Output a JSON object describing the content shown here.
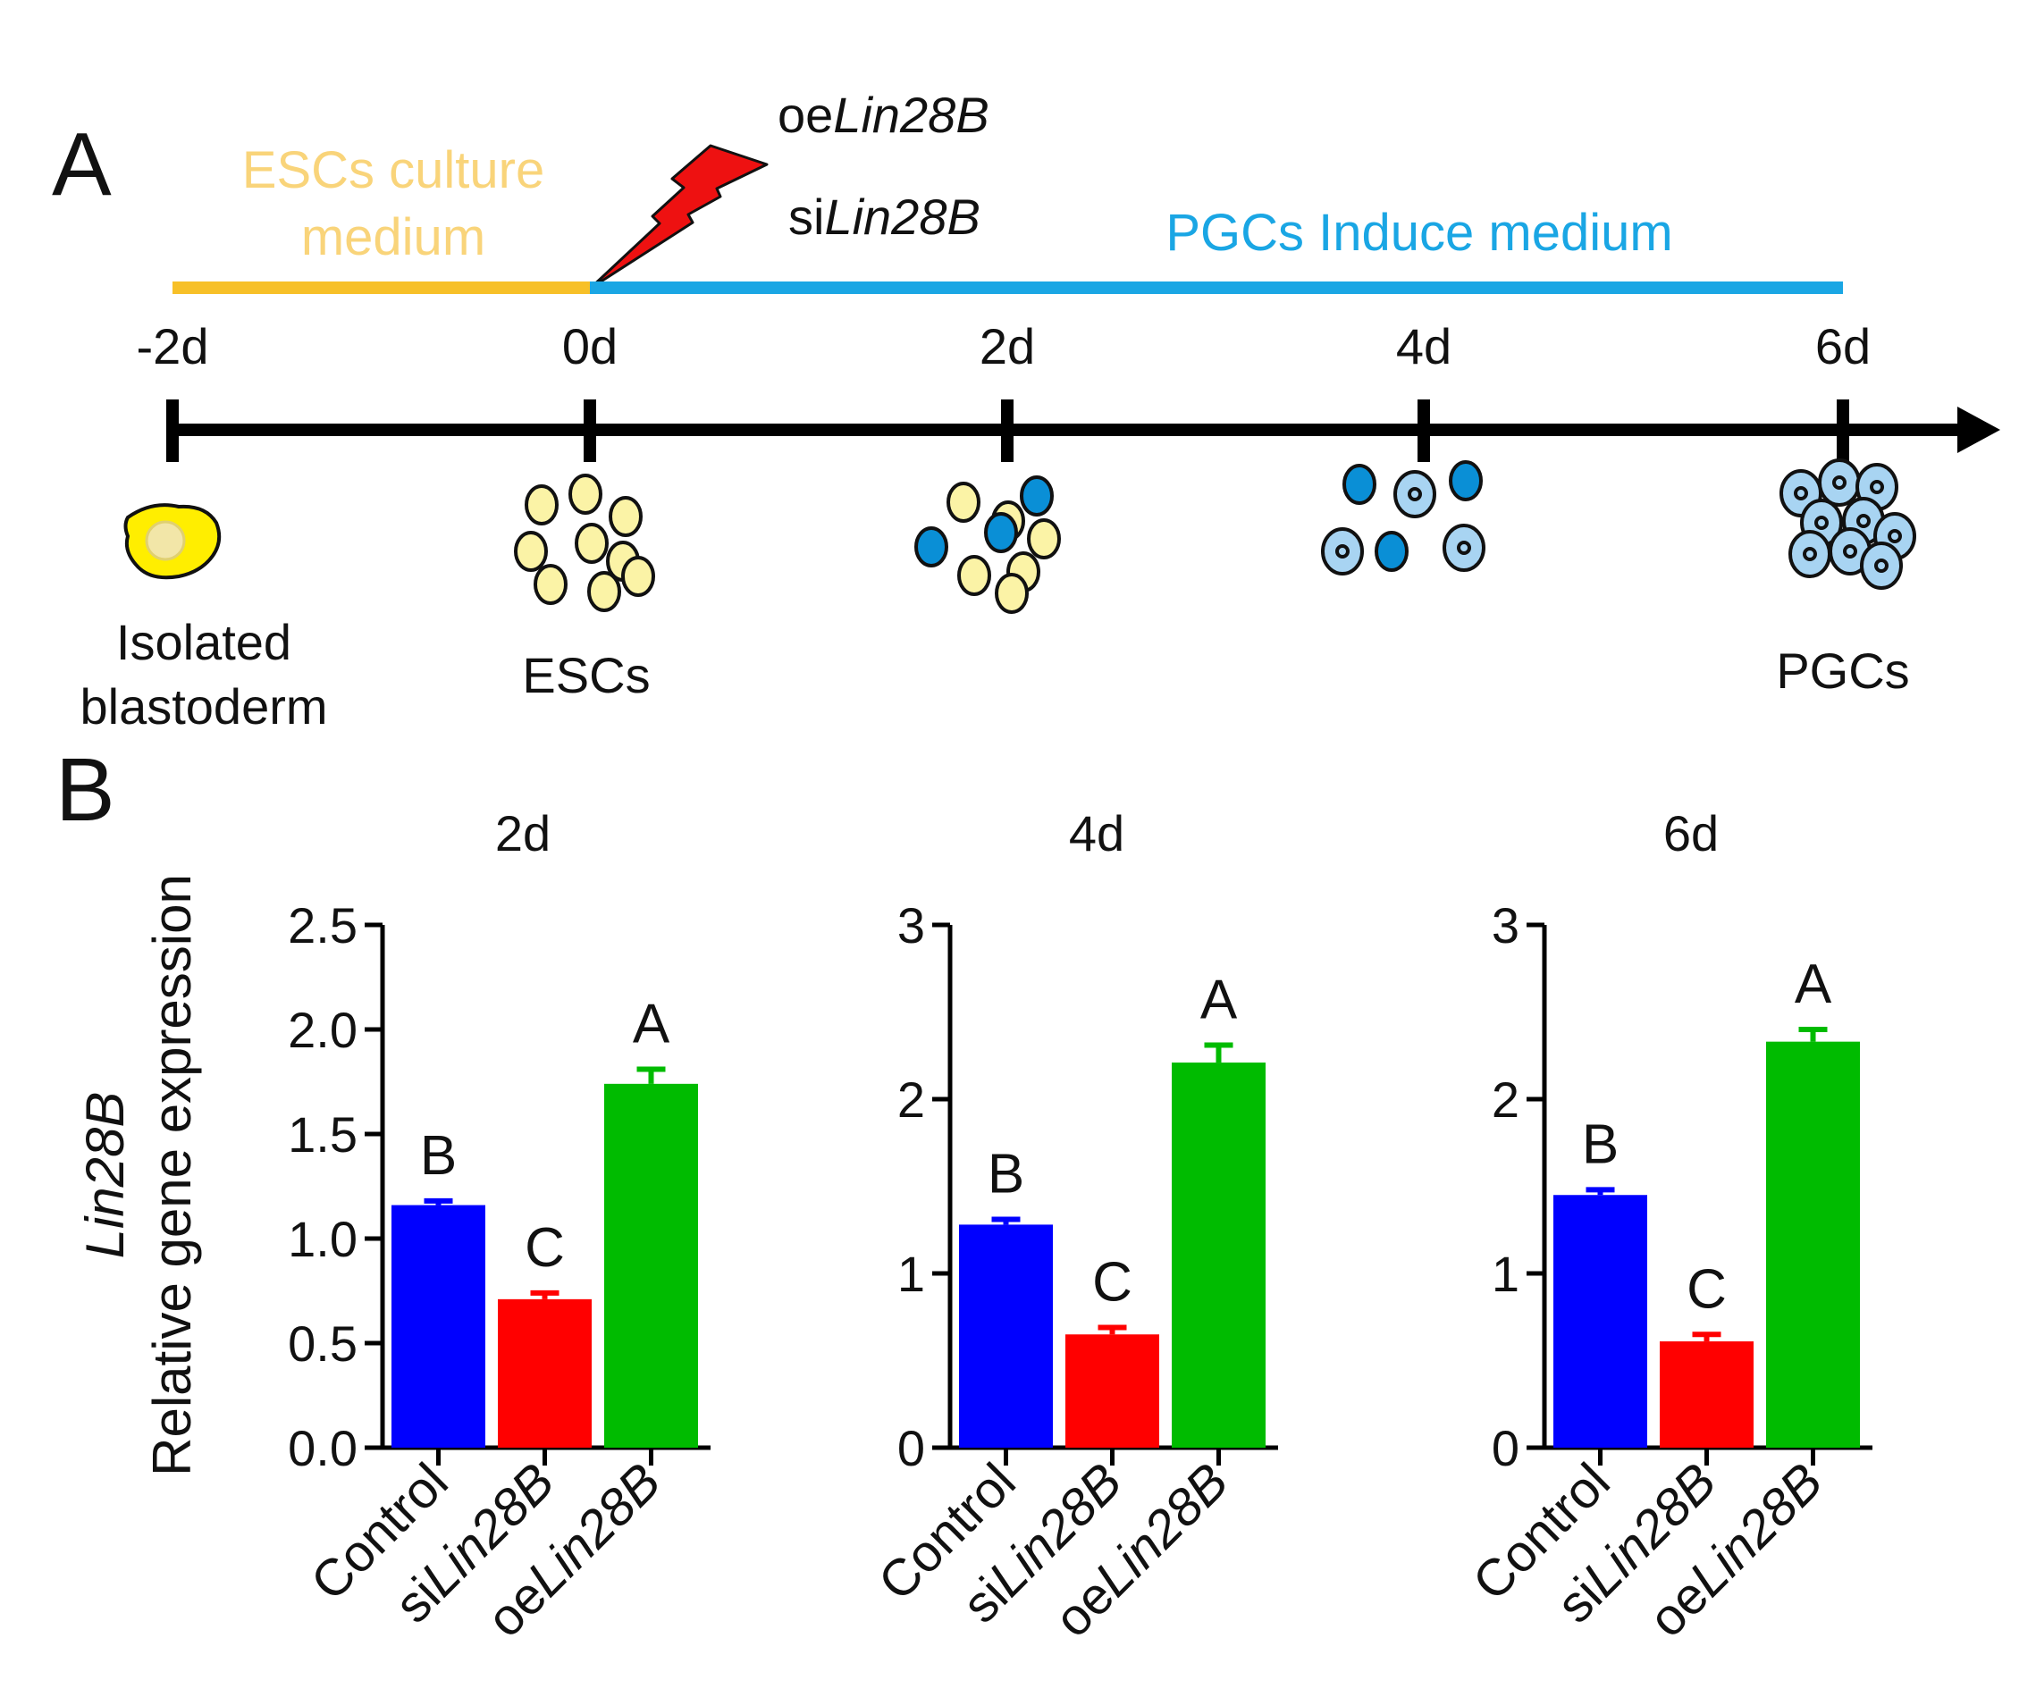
{
  "panel_a": {
    "label": "A",
    "esc_medium_line1": "ESCs culture",
    "esc_medium_line2": "medium",
    "pgc_medium": "PGCs Induce medium",
    "treatment_oe_prefix": "oe",
    "treatment_si_prefix": "si",
    "gene": "Lin28B",
    "days": [
      "-2d",
      "0d",
      "2d",
      "4d",
      "6d"
    ],
    "stage_isolated_line1": "Isolated",
    "stage_isolated_line2": "blastoderm",
    "stage_escs": "ESCs",
    "stage_pgcs": "PGCs",
    "colors": {
      "esc": "#f7c028",
      "esc_text": "#f9d47a",
      "pgc": "#1aa6e4",
      "bolt": "#ee1111",
      "cell_yellow": "#fbf3a6",
      "cell_blue": "#0a8fd6",
      "cell_light": "#a8d4f2",
      "blastoderm": "#ffee00"
    }
  },
  "panel_b": {
    "label": "B",
    "ylabel_gene": "Lin28B",
    "ylabel_text": "Relative gene expression",
    "category_labels": [
      {
        "prefix": "",
        "gene": "Control",
        "gene_italic": false
      },
      {
        "prefix": "si",
        "gene": "Lin28B",
        "gene_italic": true
      },
      {
        "prefix": "oe",
        "gene": "Lin28B",
        "gene_italic": true
      }
    ]
  },
  "chart_data": [
    {
      "type": "bar",
      "title": "2d",
      "categories": [
        "Control",
        "siLin28B",
        "oeLin28B"
      ],
      "values": [
        1.16,
        0.71,
        1.74
      ],
      "errors": [
        0.02,
        0.03,
        0.07
      ],
      "letters": [
        "B",
        "C",
        "A"
      ],
      "colors": [
        "#0000ff",
        "#ff0000",
        "#00bb00"
      ],
      "ylim": [
        0,
        2.5
      ],
      "yticks": [
        "0.0",
        "0.5",
        "1.0",
        "1.5",
        "2.0",
        "2.5"
      ],
      "ylabel": "Lin28B Relative gene expression",
      "xlabel": ""
    },
    {
      "type": "bar",
      "title": "4d",
      "categories": [
        "Control",
        "siLin28B",
        "oeLin28B"
      ],
      "values": [
        1.28,
        0.65,
        2.21
      ],
      "errors": [
        0.03,
        0.04,
        0.1
      ],
      "letters": [
        "B",
        "C",
        "A"
      ],
      "colors": [
        "#0000ff",
        "#ff0000",
        "#00bb00"
      ],
      "ylim": [
        0,
        3
      ],
      "yticks": [
        "0",
        "1",
        "2",
        "3"
      ],
      "ylabel": "Lin28B Relative gene expression",
      "xlabel": ""
    },
    {
      "type": "bar",
      "title": "6d",
      "categories": [
        "Control",
        "siLin28B",
        "oeLin28B"
      ],
      "values": [
        1.45,
        0.61,
        2.33
      ],
      "errors": [
        0.03,
        0.04,
        0.07
      ],
      "letters": [
        "B",
        "C",
        "A"
      ],
      "colors": [
        "#0000ff",
        "#ff0000",
        "#00bb00"
      ],
      "ylim": [
        0,
        3
      ],
      "yticks": [
        "0",
        "1",
        "2",
        "3"
      ],
      "ylabel": "Lin28B Relative gene expression",
      "xlabel": ""
    }
  ]
}
